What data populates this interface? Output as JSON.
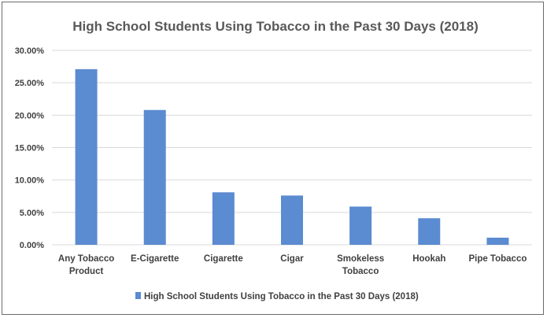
{
  "chart_data": {
    "type": "bar",
    "title": "High School Students Using Tobacco in the Past 30 Days (2018)",
    "categories": [
      [
        "Any Tobacco",
        "Product"
      ],
      [
        "E-Cigarette"
      ],
      [
        "Cigarette"
      ],
      [
        "Cigar"
      ],
      [
        "Smokeless",
        "Tobacco"
      ],
      [
        "Hookah"
      ],
      [
        "Pipe Tobacco"
      ]
    ],
    "series": [
      {
        "name": "High School Students Using Tobacco in the Past 30 Days (2018)",
        "values": [
          27.1,
          20.8,
          8.1,
          7.6,
          5.9,
          4.1,
          1.1
        ],
        "color": "#5b8bd0"
      }
    ],
    "xlabel": "",
    "ylabel": "",
    "ylim": [
      0,
      30
    ],
    "yticks": [
      "0.00%",
      "5.00%",
      "10.00%",
      "15.00%",
      "20.00%",
      "25.00%",
      "30.00%"
    ],
    "grid": true,
    "legend_position": "bottom"
  }
}
